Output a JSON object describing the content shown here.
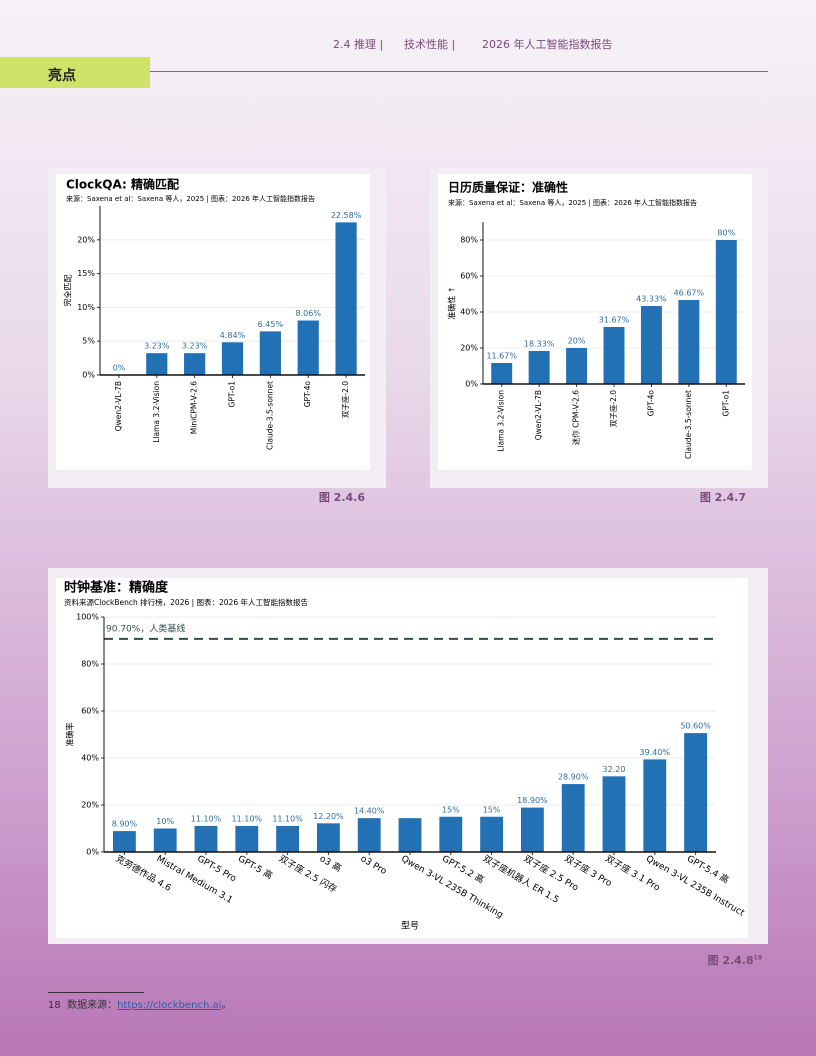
{
  "header": {
    "items": [
      "2.4 推理 |",
      "技术性能 |",
      "2026 年人工智能指数报告"
    ]
  },
  "section": "亮点",
  "chart_data": [
    {
      "type": "bar",
      "title": "ClockQA: 精确匹配",
      "source": "来源：Saxena et al：Saxena 等人，2025 | 图表：2026 年人工智能指数报告",
      "ylabel": "完全匹配",
      "categories": [
        "Qwen2-VL-7B",
        "Llama 3.2-Vision",
        "MiniCPM-V-2.6",
        "GPT-o1",
        "Claude-3.5-sonnet",
        "GPT-4o",
        "双子座-2.0"
      ],
      "values": [
        0,
        3.23,
        3.23,
        4.84,
        6.45,
        8.06,
        22.58
      ],
      "value_labels": [
        "0%",
        "3.23%",
        "3.23%",
        "4.84%",
        "6.45%",
        "8.06%",
        "22.58%"
      ],
      "color": "#2271b5",
      "ylim": [
        0,
        25
      ],
      "yticks": [
        {
          "value": 0,
          "label": "0%"
        },
        {
          "value": 5,
          "label": "5%"
        },
        {
          "value": 10,
          "label": "10%"
        },
        {
          "value": 15,
          "label": "15%"
        },
        {
          "value": 20,
          "label": "20%"
        }
      ],
      "grid": true
    },
    {
      "type": "bar",
      "title": "日历质量保证：准确性",
      "source": "来源：Saxena et al：Saxena 等人，2025 | 图表：2026 年人工智能指数报告",
      "ylabel": "准确性 ↑",
      "categories": [
        "Llama 3.2-Vision",
        "Qwen2-VL-7B",
        "迷你 CPM-V-2.6",
        "双子座-2.0",
        "GPT-4o",
        "Claude-3.5-sonnet",
        "GPT-o1"
      ],
      "values": [
        11.67,
        18.33,
        20,
        31.67,
        43.33,
        46.67,
        80
      ],
      "value_labels": [
        "11.67%",
        "18.33%",
        "20%",
        "31.67%",
        "43.33%",
        "46.67%",
        "80%"
      ],
      "color": "#2271b5",
      "ylim": [
        0,
        90
      ],
      "yticks": [
        {
          "value": 0,
          "label": "0%"
        },
        {
          "value": 20,
          "label": "20%"
        },
        {
          "value": 40,
          "label": "40%"
        },
        {
          "value": 60,
          "label": "60%"
        },
        {
          "value": 80,
          "label": "80%"
        }
      ],
      "grid": true
    },
    {
      "type": "bar",
      "title": "时钟基准：精确度",
      "source": "资料来源ClockBench 排行榜，2026 | 图表：2026 年人工智能指数报告",
      "ylabel": "准确率",
      "xlabel": "型号",
      "categories": [
        "克劳德作品 4.6",
        "Mistral Medium 3.1",
        "GPT-5 Pro",
        "GPT-5 高",
        "双子座 2.5 闪存",
        "o3 高",
        "o3 Pro",
        "Qwen 3-VL 235B Thinking",
        "GPT-5.2 高",
        "双子座机器人 ER 1.5",
        "双子座 2.5 Pro",
        "双子座 3 Pro",
        "双子座 3.1 Pro",
        "Qwen 3-VL 235B Instruct",
        "GPT-5.4 高"
      ],
      "values": [
        8.9,
        10,
        11.1,
        11.1,
        11.1,
        12.2,
        14.4,
        14.4,
        15,
        15,
        18.9,
        28.9,
        32.2,
        39.4,
        50.6
      ],
      "value_labels": [
        "8.90%",
        "10%",
        "11.10%",
        "11.10%",
        "11.10%",
        "12.20%",
        "14.40%",
        null,
        "15%",
        "15%",
        "18.90%",
        "28.90%",
        "32.20",
        "39.40%",
        "50.60%"
      ],
      "color": "#2271b5",
      "ylim": [
        0,
        100
      ],
      "yticks": [
        {
          "value": 0,
          "label": "0%"
        },
        {
          "value": 20,
          "label": "20%"
        },
        {
          "value": 40,
          "label": "40%"
        },
        {
          "value": 60,
          "label": "60%"
        },
        {
          "value": 80,
          "label": "80%"
        },
        {
          "value": 100,
          "label": "100%"
        }
      ],
      "reference_line": {
        "value": 90.7,
        "label": "90.70%，人类基线"
      },
      "grid": true
    }
  ],
  "figures": [
    "图 2.4.6",
    "图 2.4.7",
    "图 2.4.8"
  ],
  "footnote": {
    "number": "18",
    "text": "数据来源：",
    "link": "https://clockbench.ai",
    "end": "。"
  }
}
